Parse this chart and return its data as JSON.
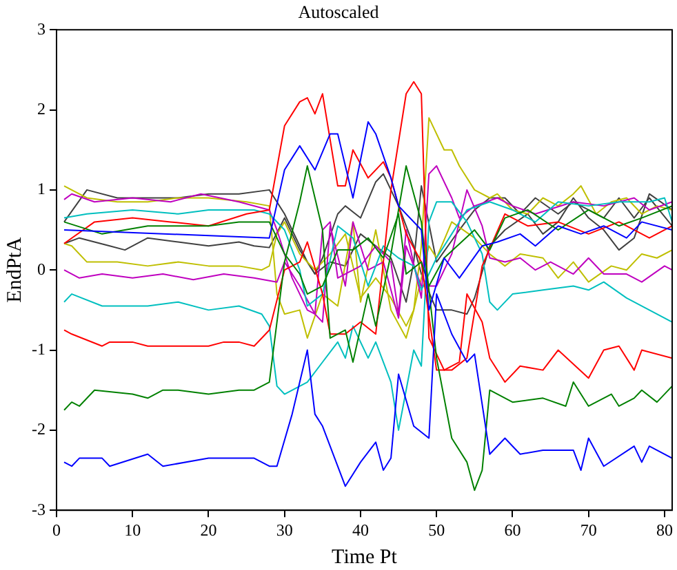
{
  "chart_data": {
    "type": "line",
    "title": "Autoscaled",
    "xlabel": "Time Pt",
    "ylabel": "EndPtA",
    "xlim": [
      0,
      81
    ],
    "ylim": [
      -3,
      3
    ],
    "xticks": [
      0,
      10,
      20,
      30,
      40,
      50,
      60,
      70,
      80
    ],
    "yticks": [
      -3,
      -2,
      -1,
      0,
      1,
      2,
      3
    ],
    "grid": false,
    "legend": false,
    "marker": "none",
    "line_style": "solid",
    "series": [
      {
        "color": "#0000ff",
        "x": [
          1,
          28,
          30,
          32,
          34,
          36,
          37,
          39,
          41,
          42,
          44,
          45,
          48,
          49,
          51,
          53,
          56,
          58,
          61,
          63,
          66,
          69,
          72,
          75,
          77,
          81
        ],
        "values": [
          0.5,
          0.4,
          1.25,
          1.55,
          1.25,
          1.7,
          1.7,
          0.9,
          1.85,
          1.7,
          1.15,
          0.8,
          0.5,
          -0.5,
          0.15,
          -0.1,
          0.3,
          0.35,
          0.45,
          0.3,
          0.55,
          0.45,
          0.55,
          0.4,
          0.6,
          0.5
        ]
      },
      {
        "color": "#0000ff",
        "x": [
          1,
          2,
          3,
          6,
          7,
          12,
          14,
          20,
          26,
          28,
          29,
          31,
          33,
          34,
          35,
          38,
          40,
          42,
          43,
          44,
          45,
          47,
          49,
          50,
          52,
          54,
          55,
          57,
          59,
          61,
          64,
          68,
          69,
          70,
          72,
          76,
          77,
          78,
          81
        ],
        "values": [
          -2.4,
          -2.45,
          -2.35,
          -2.35,
          -2.45,
          -2.3,
          -2.45,
          -2.35,
          -2.35,
          -2.45,
          -2.45,
          -1.8,
          -1.0,
          -1.8,
          -1.95,
          -2.7,
          -2.4,
          -2.15,
          -2.5,
          -2.35,
          -1.3,
          -1.95,
          -2.1,
          -0.3,
          -0.8,
          -1.15,
          -1.05,
          -2.3,
          -2.1,
          -2.3,
          -2.25,
          -2.25,
          -2.5,
          -2.1,
          -2.45,
          -2.2,
          -2.4,
          -2.2,
          -2.35
        ]
      },
      {
        "color": "#008000",
        "x": [
          1,
          6,
          12,
          20,
          24,
          28,
          30,
          32,
          33,
          35,
          37,
          39,
          41,
          43,
          45,
          46,
          48,
          49,
          51,
          55,
          57,
          59,
          62,
          66,
          70,
          74,
          77,
          81
        ],
        "values": [
          0.6,
          0.45,
          0.55,
          0.55,
          0.6,
          0.6,
          0.2,
          -0.05,
          -0.3,
          -0.2,
          0.25,
          0.25,
          0.4,
          0.15,
          0.7,
          -0.05,
          0.1,
          -0.2,
          0.15,
          0.5,
          0.25,
          0.65,
          0.75,
          0.5,
          0.75,
          0.55,
          0.65,
          0.8
        ]
      },
      {
        "color": "#008000",
        "x": [
          1,
          2,
          3,
          5,
          10,
          12,
          14,
          16,
          20,
          24,
          26,
          28,
          30,
          32,
          33,
          35,
          36,
          38,
          39,
          41,
          42,
          44,
          46,
          48,
          50,
          52,
          54,
          55,
          56,
          57,
          60,
          64,
          67,
          68,
          70,
          73,
          74,
          76,
          77,
          79,
          81
        ],
        "values": [
          -1.75,
          -1.65,
          -1.7,
          -1.5,
          -1.55,
          -1.6,
          -1.5,
          -1.5,
          -1.55,
          -1.5,
          -1.5,
          -1.4,
          0.1,
          0.85,
          1.3,
          0.5,
          -0.85,
          -0.75,
          -1.15,
          -0.3,
          -0.7,
          0.2,
          1.3,
          0.6,
          -1.1,
          -2.1,
          -2.4,
          -2.75,
          -2.5,
          -1.5,
          -1.65,
          -1.6,
          -1.7,
          -1.4,
          -1.7,
          -1.55,
          -1.7,
          -1.6,
          -1.5,
          -1.65,
          -1.45
        ]
      },
      {
        "color": "#ff0000",
        "x": [
          1,
          5,
          10,
          15,
          20,
          25,
          28,
          30,
          32,
          33,
          34,
          35,
          37,
          38,
          39,
          41,
          43,
          44,
          46,
          48,
          50,
          52,
          54,
          56,
          59,
          62,
          66,
          70,
          74,
          78,
          81
        ],
        "values": [
          0.33,
          0.6,
          0.65,
          0.6,
          0.55,
          0.7,
          0.75,
          1.8,
          2.1,
          2.15,
          1.95,
          2.2,
          1.05,
          1.05,
          1.5,
          1.15,
          1.35,
          1.15,
          0.45,
          0.1,
          -1.25,
          -1.25,
          -1.1,
          0.05,
          0.7,
          0.55,
          0.6,
          0.45,
          0.6,
          0.4,
          0.55
        ]
      },
      {
        "color": "#ff0000",
        "x": [
          1,
          2,
          6,
          7,
          10,
          12,
          15,
          20,
          22,
          24,
          26,
          28,
          30,
          32,
          33,
          35,
          36,
          38,
          40,
          42,
          44,
          46,
          47,
          48,
          49,
          51,
          53,
          54,
          56,
          57,
          59,
          61,
          64,
          66,
          70,
          72,
          74,
          76,
          77,
          81
        ],
        "values": [
          -0.75,
          -0.8,
          -0.95,
          -0.9,
          -0.9,
          -0.95,
          -0.95,
          -0.95,
          -0.9,
          -0.9,
          -0.95,
          -0.75,
          0.0,
          0.1,
          0.35,
          -0.3,
          -0.8,
          -0.8,
          -0.65,
          -0.8,
          1.0,
          2.2,
          2.35,
          2.2,
          -0.85,
          -1.25,
          -1.15,
          -0.3,
          -0.65,
          -1.1,
          -1.4,
          -1.2,
          -1.25,
          -1.0,
          -1.35,
          -1.0,
          -0.95,
          -1.25,
          -1.0,
          -1.1
        ]
      },
      {
        "color": "#00bfbf",
        "x": [
          1,
          4,
          10,
          16,
          20,
          26,
          28,
          30,
          32,
          33,
          35,
          37,
          39,
          41,
          43,
          45,
          47,
          48,
          50,
          52,
          54,
          57,
          60,
          63,
          66,
          70,
          74,
          78,
          80,
          81
        ],
        "values": [
          0.65,
          0.7,
          0.75,
          0.7,
          0.75,
          0.75,
          0.7,
          0.5,
          0.0,
          -0.45,
          -0.3,
          0.55,
          0.4,
          -0.2,
          0.3,
          0.15,
          0.05,
          -0.25,
          0.15,
          0.45,
          0.75,
          0.85,
          0.75,
          0.6,
          0.85,
          0.8,
          0.85,
          0.85,
          0.9,
          0.6
        ]
      },
      {
        "color": "#00bfbf",
        "x": [
          1,
          2,
          6,
          12,
          16,
          20,
          24,
          27,
          28,
          29,
          30,
          33,
          35,
          37,
          38,
          39,
          41,
          42,
          44,
          45,
          46,
          47,
          48,
          49,
          50,
          52,
          54,
          56,
          57,
          58,
          60,
          64,
          68,
          70,
          72,
          75,
          78,
          81
        ],
        "values": [
          -0.4,
          -0.3,
          -0.45,
          -0.45,
          -0.4,
          -0.5,
          -0.45,
          -0.55,
          -0.7,
          -1.45,
          -1.55,
          -1.4,
          -1.15,
          -0.9,
          -1.1,
          -0.7,
          -1.1,
          -0.9,
          -1.4,
          -2.0,
          -1.5,
          -1.0,
          -1.2,
          0.6,
          0.85,
          0.85,
          0.6,
          0.2,
          -0.4,
          -0.5,
          -0.3,
          -0.25,
          -0.2,
          -0.25,
          -0.15,
          -0.35,
          -0.5,
          -0.65
        ]
      },
      {
        "color": "#bf00bf",
        "x": [
          1,
          2,
          5,
          10,
          15,
          19,
          24,
          28,
          29,
          31,
          33,
          34,
          35,
          36,
          37,
          40,
          42,
          44,
          45,
          46,
          48,
          49,
          50,
          52,
          53,
          55,
          58,
          60,
          63,
          68,
          72,
          76,
          78,
          81
        ],
        "values": [
          0.88,
          0.95,
          0.85,
          0.9,
          0.85,
          0.95,
          0.85,
          0.75,
          0.5,
          -0.1,
          -0.5,
          -0.55,
          0.5,
          0.6,
          -0.1,
          0.05,
          0.3,
          0.1,
          -0.55,
          0.5,
          -0.35,
          1.2,
          1.3,
          0.9,
          0.65,
          0.8,
          0.9,
          0.8,
          0.7,
          0.85,
          0.8,
          0.9,
          0.75,
          0.85
        ]
      },
      {
        "color": "#bf00bf",
        "x": [
          1,
          3,
          6,
          10,
          14,
          18,
          22,
          26,
          29,
          30,
          32,
          34,
          35,
          36,
          38,
          39,
          41,
          43,
          45,
          46,
          48,
          50,
          52,
          54,
          56,
          57,
          59,
          61,
          63,
          65,
          68,
          70,
          72,
          75,
          77,
          80,
          81
        ],
        "values": [
          0.0,
          -0.1,
          -0.05,
          -0.1,
          -0.05,
          -0.12,
          -0.05,
          -0.1,
          -0.15,
          0.1,
          -0.2,
          -0.55,
          -0.65,
          0.55,
          -0.2,
          0.6,
          0.0,
          0.1,
          -0.6,
          0.3,
          -0.2,
          -0.2,
          0.2,
          1.0,
          0.55,
          0.15,
          0.1,
          0.15,
          0.0,
          0.1,
          -0.05,
          0.15,
          -0.05,
          -0.05,
          -0.15,
          0.05,
          0.0
        ]
      },
      {
        "color": "#bfbf00",
        "x": [
          1,
          4,
          8,
          12,
          16,
          20,
          25,
          28,
          29,
          30,
          32,
          33,
          35,
          37,
          39,
          40,
          42,
          44,
          46,
          47,
          48,
          49,
          51,
          52,
          53,
          55,
          57,
          58,
          60,
          62,
          64,
          66,
          68,
          69,
          71,
          73,
          75,
          77,
          79,
          81
        ],
        "values": [
          1.05,
          0.9,
          0.85,
          0.85,
          0.9,
          0.9,
          0.85,
          0.8,
          -0.3,
          -0.55,
          -0.5,
          -0.85,
          -0.3,
          -0.45,
          0.6,
          -0.4,
          0.5,
          -0.5,
          -0.85,
          -0.5,
          0.3,
          1.9,
          1.5,
          1.5,
          1.3,
          1.0,
          0.9,
          0.95,
          0.75,
          0.7,
          0.9,
          0.8,
          0.95,
          1.05,
          0.7,
          0.85,
          0.9,
          0.7,
          0.8,
          0.75
        ]
      },
      {
        "color": "#bfbf00",
        "x": [
          1,
          2,
          4,
          8,
          12,
          16,
          20,
          24,
          27,
          28,
          29,
          30,
          32,
          34,
          36,
          38,
          40,
          42,
          44,
          46,
          47,
          49,
          50,
          52,
          55,
          57,
          59,
          61,
          64,
          66,
          68,
          70,
          73,
          75,
          77,
          79,
          81
        ],
        "values": [
          0.33,
          0.3,
          0.1,
          0.1,
          0.05,
          0.1,
          0.05,
          0.05,
          0.0,
          0.05,
          0.45,
          0.6,
          0.2,
          0.0,
          0.2,
          0.45,
          -0.35,
          -0.1,
          -0.35,
          -0.7,
          -0.5,
          0.3,
          0.15,
          0.6,
          0.4,
          0.2,
          0.05,
          0.2,
          0.15,
          -0.1,
          0.1,
          -0.15,
          0.05,
          0.0,
          0.2,
          0.15,
          0.25
        ]
      },
      {
        "color": "#404040",
        "x": [
          1,
          4,
          8,
          12,
          16,
          20,
          24,
          28,
          30,
          32,
          33,
          34,
          35,
          37,
          38,
          40,
          42,
          43,
          45,
          47,
          48,
          50,
          52,
          54,
          55,
          57,
          59,
          62,
          64,
          66,
          68,
          70,
          72,
          74,
          76,
          78,
          81
        ],
        "values": [
          0.6,
          1.0,
          0.9,
          0.9,
          0.9,
          0.95,
          0.95,
          1.0,
          0.7,
          0.3,
          0.1,
          -0.05,
          0.15,
          0.7,
          0.8,
          0.65,
          1.1,
          1.2,
          0.8,
          0.3,
          -0.05,
          -0.5,
          -0.5,
          -0.55,
          -0.35,
          0.3,
          0.5,
          0.7,
          0.45,
          0.6,
          0.9,
          0.65,
          0.5,
          0.25,
          0.4,
          0.95,
          0.75
        ]
      },
      {
        "color": "#404040",
        "x": [
          1,
          3,
          7,
          9,
          12,
          16,
          20,
          24,
          26,
          28,
          30,
          32,
          34,
          36,
          38,
          40,
          42,
          44,
          46,
          47,
          48,
          50,
          53,
          55,
          57,
          59,
          61,
          63,
          66,
          68,
          70,
          72,
          74,
          76,
          78,
          81
        ],
        "values": [
          0.33,
          0.4,
          0.3,
          0.25,
          0.4,
          0.35,
          0.3,
          0.35,
          0.3,
          0.28,
          0.65,
          0.25,
          -0.05,
          0.1,
          0.05,
          0.45,
          0.3,
          0.15,
          -0.4,
          0.1,
          1.05,
          0.1,
          0.5,
          0.75,
          0.9,
          0.9,
          0.7,
          0.9,
          0.7,
          0.85,
          0.75,
          0.65,
          0.9,
          0.65,
          0.9,
          0.55
        ]
      }
    ]
  }
}
